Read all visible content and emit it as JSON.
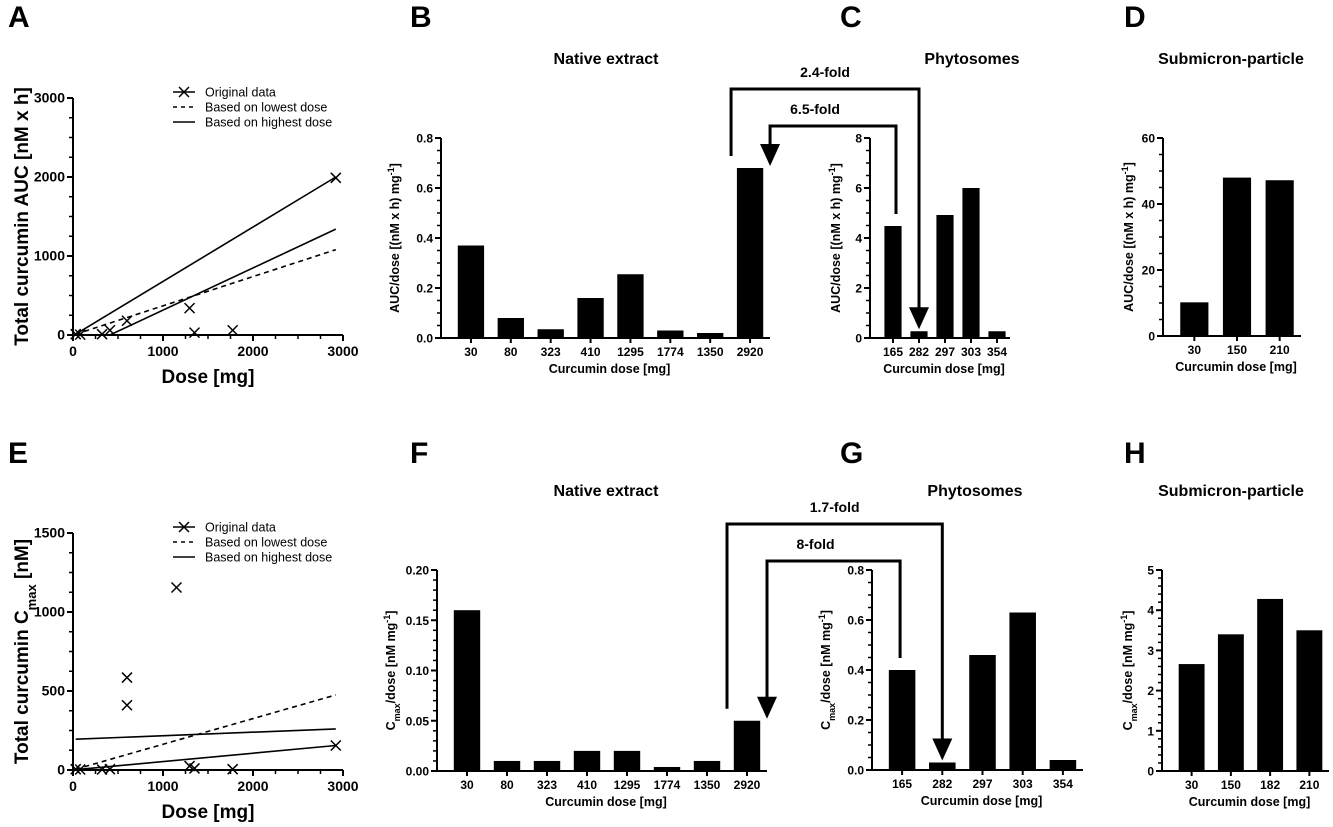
{
  "figure": {
    "colors": {
      "bar": "#000000",
      "axis": "#000000",
      "background": "#ffffff"
    }
  },
  "chart_data": [
    {
      "id": "A",
      "letter": "A",
      "type": "scatter",
      "title": "",
      "xlabel": "Dose [mg]",
      "ylabel": "Total curcumin AUC [nM x h]",
      "xlim": [
        0,
        3000
      ],
      "ylim": [
        0,
        3000
      ],
      "xticks": [
        0,
        1000,
        2000,
        3000
      ],
      "yticks": [
        0,
        1000,
        2000,
        3000
      ],
      "legend": {
        "placement": "top-right",
        "entries": [
          "Original data",
          "Based on lowest dose",
          "Based on highest dose"
        ]
      },
      "points": [
        [
          30,
          10
        ],
        [
          80,
          5
        ],
        [
          323,
          10
        ],
        [
          410,
          60
        ],
        [
          600,
          180
        ],
        [
          1295,
          340
        ],
        [
          1350,
          30
        ],
        [
          1774,
          60
        ],
        [
          2920,
          1990
        ]
      ],
      "lines": [
        {
          "name": "Based on lowest dose",
          "style": "dashed",
          "x": [
            30,
            2920
          ],
          "y": [
            10,
            1080
          ]
        },
        {
          "name": "Based on highest dose",
          "style": "solid",
          "x": [
            30,
            2920
          ],
          "y": [
            10,
            2000
          ]
        },
        {
          "name": "Based on highest dose",
          "style": "solid",
          "x": [
            410,
            2920
          ],
          "y": [
            0,
            1340
          ]
        }
      ]
    },
    {
      "id": "B",
      "letter": "B",
      "type": "bar",
      "title": "Native extract",
      "xlabel": "Curcumin dose [mg]",
      "ylabel": "AUC/dose [(nM x h) mg",
      "ylabel_sup": "-1",
      "ylabel_end": "]",
      "categories": [
        "30",
        "80",
        "323",
        "410",
        "1295",
        "1774",
        "1350",
        "2920"
      ],
      "values": [
        0.37,
        0.08,
        0.035,
        0.16,
        0.255,
        0.03,
        0.02,
        0.68
      ],
      "ylim": [
        0,
        0.8
      ],
      "yticks": [
        "0.0",
        "0.2",
        "0.4",
        "0.6",
        "0.8"
      ]
    },
    {
      "id": "C",
      "letter": "C",
      "type": "bar",
      "title": "Phytosomes",
      "xlabel": "Curcumin dose [mg]",
      "ylabel": "AUC/dose [(nM x h) mg",
      "ylabel_sup": "-1",
      "ylabel_end": "]",
      "categories": [
        "165",
        "282",
        "297",
        "303",
        "354"
      ],
      "values": [
        4.48,
        0.27,
        4.92,
        6.0,
        0.27
      ],
      "ylim": [
        0,
        8
      ],
      "yticks": [
        "0",
        "2",
        "4",
        "6",
        "8"
      ]
    },
    {
      "id": "D",
      "letter": "D",
      "type": "bar",
      "title": "Submicron-particle",
      "xlabel": "Curcumin dose [mg]",
      "ylabel": "AUC/dose [(nM x h) mg",
      "ylabel_sup": "-1",
      "ylabel_end": "]",
      "categories": [
        "30",
        "150",
        "210"
      ],
      "values": [
        10.2,
        48.0,
        47.2
      ],
      "ylim": [
        0,
        60
      ],
      "yticks": [
        "0",
        "20",
        "40",
        "60"
      ]
    },
    {
      "id": "E",
      "letter": "E",
      "type": "scatter",
      "title": "",
      "xlabel": "Dose [mg]",
      "ylabel": "Total curcumin C",
      "ylabel_sub": "max",
      "ylabel_end": " [nM]",
      "xlim": [
        0,
        3000
      ],
      "ylim": [
        0,
        1500
      ],
      "xticks": [
        0,
        1000,
        2000,
        3000
      ],
      "yticks": [
        0,
        500,
        1000,
        1500
      ],
      "legend": {
        "placement": "top-right",
        "entries": [
          "Original data",
          "Based on lowest dose",
          "Based on highest dose"
        ]
      },
      "points": [
        [
          30,
          5
        ],
        [
          80,
          3
        ],
        [
          323,
          3
        ],
        [
          410,
          5
        ],
        [
          600,
          410
        ],
        [
          600,
          585
        ],
        [
          1150,
          1155
        ],
        [
          1295,
          25
        ],
        [
          1350,
          10
        ],
        [
          1774,
          5
        ],
        [
          2920,
          155
        ]
      ],
      "lines": [
        {
          "name": "Based on lowest dose",
          "style": "dashed",
          "x": [
            30,
            2920
          ],
          "y": [
            5,
            475
          ]
        },
        {
          "name": "Based on highest dose",
          "style": "solid",
          "x": [
            30,
            2920
          ],
          "y": [
            195,
            260
          ]
        },
        {
          "name": "Based on highest dose",
          "style": "solid",
          "x": [
            30,
            2920
          ],
          "y": [
            2,
            155
          ]
        }
      ]
    },
    {
      "id": "F",
      "letter": "F",
      "type": "bar",
      "title": "Native extract",
      "xlabel": "Curcumin dose [mg]",
      "ylabel": "C",
      "ylabel_sub": "max",
      "ylabel_mid": "/dose [nM mg",
      "ylabel_sup": "-1",
      "ylabel_end": "]",
      "categories": [
        "30",
        "80",
        "323",
        "410",
        "1295",
        "1774",
        "1350",
        "2920"
      ],
      "values": [
        0.16,
        0.01,
        0.01,
        0.02,
        0.02,
        0.004,
        0.01,
        0.05
      ],
      "ylim": [
        0,
        0.2
      ],
      "yticks": [
        "0.00",
        "0.05",
        "0.10",
        "0.15",
        "0.20"
      ]
    },
    {
      "id": "G",
      "letter": "G",
      "type": "bar",
      "title": "Phytosomes",
      "xlabel": "Curcumin dose [mg]",
      "ylabel": "C",
      "ylabel_sub": "max",
      "ylabel_mid": "/dose [nM mg",
      "ylabel_sup": "-1",
      "ylabel_end": "]",
      "categories": [
        "165",
        "282",
        "297",
        "303",
        "354"
      ],
      "values": [
        0.4,
        0.03,
        0.46,
        0.63,
        0.04
      ],
      "ylim": [
        0,
        0.8
      ],
      "yticks": [
        "0.0",
        "0.2",
        "0.4",
        "0.6",
        "0.8"
      ]
    },
    {
      "id": "H",
      "letter": "H",
      "type": "bar",
      "title": "Submicron-particle",
      "xlabel": "Curcumin dose [mg]",
      "ylabel": "C",
      "ylabel_sub": "max",
      "ylabel_mid": "/dose [nM mg",
      "ylabel_sup": "-1",
      "ylabel_end": "]",
      "categories": [
        "30",
        "150",
        "182",
        "210"
      ],
      "values": [
        2.66,
        3.4,
        4.28,
        3.5
      ],
      "ylim": [
        0,
        5
      ],
      "yticks": [
        "0",
        "1",
        "2",
        "3",
        "4",
        "5"
      ]
    }
  ],
  "annotations": [
    {
      "row": "top",
      "label": "2.4-fold",
      "from": "C:282",
      "to": "B:2920"
    },
    {
      "row": "top",
      "label": "6.5-fold",
      "from": "C:165",
      "to": "B:2920"
    },
    {
      "row": "bottom",
      "label": "1.7-fold",
      "from": "G:282",
      "to": "F:2920"
    },
    {
      "row": "bottom",
      "label": "8-fold",
      "from": "G:165",
      "to": "F:2920"
    }
  ]
}
